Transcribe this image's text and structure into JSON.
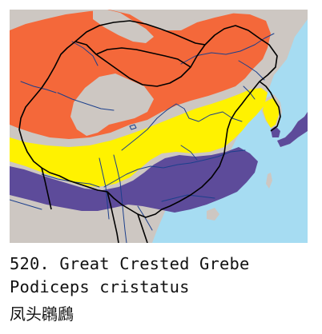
{
  "species": {
    "number_title": "520. Great Crested Grebe",
    "scientific_name": "Podiceps cristatus",
    "chinese_name": "凤头鸊鷉"
  },
  "legend_colors": {
    "breeding": "#f4683a",
    "resident": "#fff200",
    "wintering": "#5d4b9a",
    "land": "#cdc7c2",
    "water": "#a6dcf2",
    "border": "#000000",
    "river": "#1b3f8c"
  }
}
